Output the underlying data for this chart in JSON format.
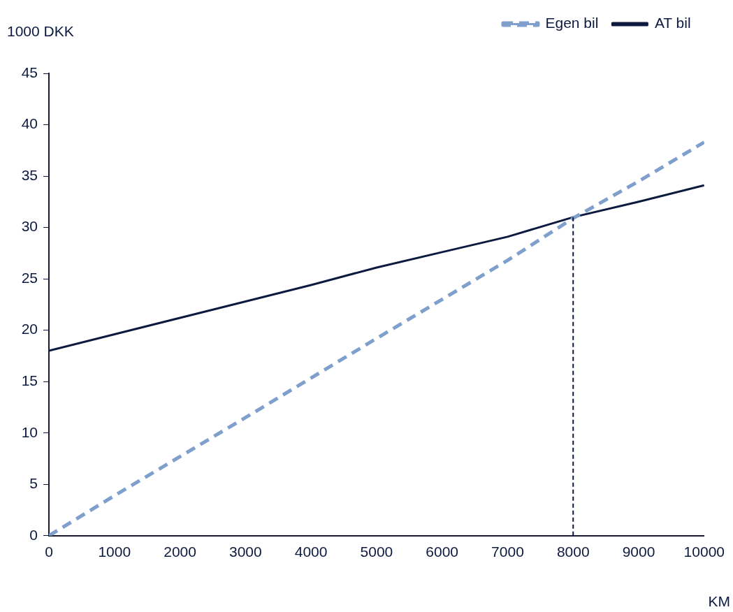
{
  "chart_data": {
    "type": "line",
    "xlabel": "KM",
    "ylabel": "1000 DKK",
    "x": [
      0,
      1000,
      2000,
      3000,
      4000,
      5000,
      6000,
      7000,
      8000,
      9000,
      10000
    ],
    "series": [
      {
        "name": "Egen bil",
        "color": "#7f9fcc",
        "line_style": "dashed",
        "values": [
          0,
          3.9,
          7.7,
          11.5,
          15.35,
          19.2,
          23.0,
          26.8,
          30.9,
          34.5,
          38.3
        ]
      },
      {
        "name": "AT bil",
        "color": "#0c1a40",
        "line_style": "solid",
        "values": [
          18,
          19.6,
          21.2,
          22.8,
          24.4,
          26.1,
          27.6,
          29.1,
          31.0,
          32.5,
          34.1
        ]
      }
    ],
    "xlim": [
      0,
      10000
    ],
    "xticks": [
      0,
      1000,
      2000,
      3000,
      4000,
      5000,
      6000,
      7000,
      8000,
      9000,
      10000
    ],
    "ylim": [
      0,
      45
    ],
    "yticks": [
      0,
      5,
      10,
      15,
      20,
      25,
      30,
      35,
      40,
      45
    ],
    "ref_lines": [
      {
        "axis": "x",
        "value": 8000,
        "color": "#0c1a40",
        "line_style": "dashed"
      }
    ],
    "grid": false,
    "legend": "top right",
    "marker": "none"
  }
}
